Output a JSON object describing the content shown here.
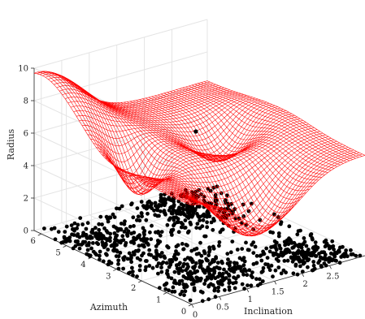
{
  "chart_data": {
    "type": "surface-scatter-3d",
    "xlabel": "Inclination",
    "ylabel": "Azimuth",
    "zlabel": "Radius",
    "xlim": [
      0,
      3.14159
    ],
    "ylim": [
      0,
      6.28318
    ],
    "zlim": [
      0,
      10
    ],
    "xticks": [
      "0",
      "0.5",
      "1",
      "1.5",
      "2",
      "2.5"
    ],
    "xtick_values": [
      0,
      0.5,
      1,
      1.5,
      2,
      2.5
    ],
    "yticks": [
      "0",
      "1",
      "2",
      "3",
      "4",
      "5",
      "6"
    ],
    "ytick_values": [
      0,
      1,
      2,
      3,
      4,
      5,
      6
    ],
    "zticks": [
      "0",
      "2",
      "4",
      "6",
      "8",
      "10"
    ],
    "ztick_values": [
      0,
      2,
      4,
      6,
      8,
      10
    ],
    "grid": true,
    "surface": {
      "color": "#ff0000",
      "style": "mesh",
      "corner_radius_approx": 6.2,
      "peak_radius_approx": 9.8,
      "min_radius_approx": 2.4
    },
    "scatter": {
      "color": "#000000",
      "radius_approx": 0,
      "outlier": {
        "inclination": 0.3,
        "azimuth": 0.5,
        "radius": 10
      },
      "clusters": [
        {
          "inclination": 0.5,
          "azimuth": 4.5,
          "spread": 0.45
        },
        {
          "inclination": 1.0,
          "azimuth": 1.5,
          "spread": 0.4
        },
        {
          "inclination": 2.5,
          "azimuth": 0.8,
          "spread": 0.35
        },
        {
          "inclination": 2.2,
          "azimuth": 5.2,
          "spread": 0.35
        }
      ]
    }
  }
}
